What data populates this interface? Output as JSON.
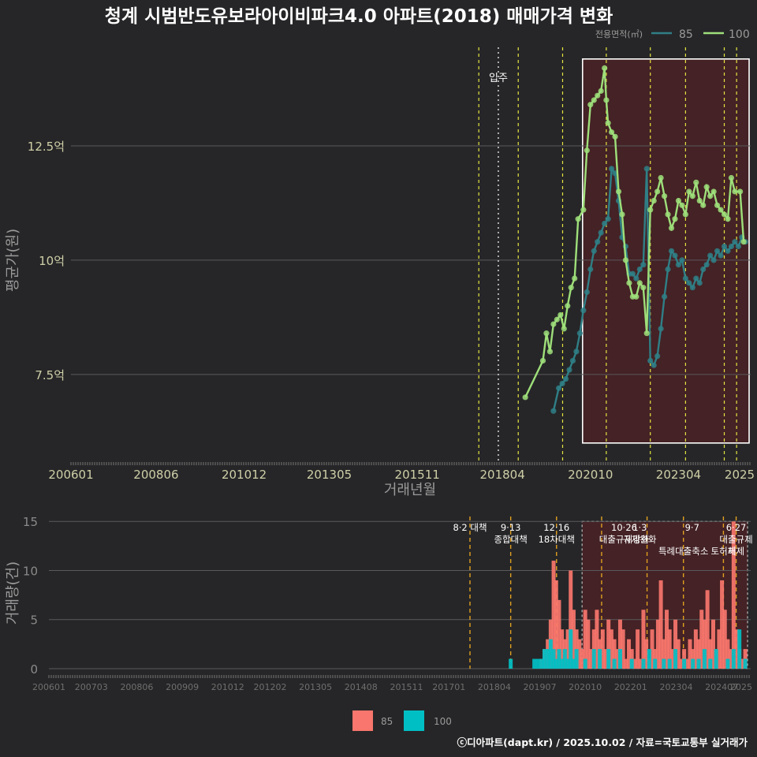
{
  "title": "청계 시범반도유보라아이비파크4.0 아파트(2018) 매매가격 변화",
  "footer": "ⓒ디아파트(dapt.kr) / 2025.10.02 / 자료=국토교통부 실거래가",
  "colors": {
    "background": "#262628",
    "line85": "#2f7f86",
    "line100": "#9edf7a",
    "bar85": "#f8766d",
    "bar100": "#00bfc4",
    "highlightFill": "#4a2224",
    "policyLine": "#e5e542",
    "policyLineBottom": "#e0a020",
    "grid": "#5a5a5c",
    "axisText": "#cfcfa8",
    "labelText": "#9a9a9a"
  },
  "chart_data": [
    {
      "type": "line",
      "title": "청계 시범반도유보라아이비파크4.0 아파트(2018) 매매가격 변화",
      "xlabel": "거래년월",
      "ylabel": "평균가(원)",
      "x_ticks": [
        "200601",
        "200806",
        "201012",
        "201305",
        "201511",
        "201804",
        "202010",
        "202304",
        "2025"
      ],
      "y_ticks": [
        {
          "value": 7.5,
          "label": "7.5억"
        },
        {
          "value": 10,
          "label": "10억"
        },
        {
          "value": 12.5,
          "label": "12.5억"
        }
      ],
      "ylim": [
        5.6,
        15.0
      ],
      "legend": {
        "title": "전용면적(㎡)",
        "entries": [
          "85",
          "100"
        ],
        "position": "top-right"
      },
      "event_label": "입주",
      "event_date": 2018.0,
      "policy_dates": [
        2017.58,
        2018.7,
        2019.96,
        2021.2,
        2022.45,
        2023.45,
        2024.55,
        2024.9
      ],
      "highlight_range": {
        "x": [
          2020.75,
          2025.9
        ],
        "y": [
          6.0,
          14.4
        ]
      },
      "series": [
        {
          "name": "85",
          "points": [
            [
              2019.7,
              6.7
            ],
            [
              2019.85,
              7.2
            ],
            [
              2019.95,
              7.3
            ],
            [
              2020.05,
              7.4
            ],
            [
              2020.15,
              7.6
            ],
            [
              2020.25,
              7.8
            ],
            [
              2020.35,
              8.0
            ],
            [
              2020.45,
              8.4
            ],
            [
              2020.55,
              8.9
            ],
            [
              2020.65,
              9.3
            ],
            [
              2020.75,
              9.8
            ],
            [
              2020.85,
              10.2
            ],
            [
              2020.95,
              10.4
            ],
            [
              2021.05,
              10.6
            ],
            [
              2021.15,
              10.8
            ],
            [
              2021.25,
              10.9
            ],
            [
              2021.35,
              12.0
            ],
            [
              2021.45,
              11.9
            ],
            [
              2021.55,
              11.3
            ],
            [
              2021.65,
              10.5
            ],
            [
              2021.75,
              10.3
            ],
            [
              2021.85,
              9.7
            ],
            [
              2021.95,
              9.7
            ],
            [
              2022.05,
              9.6
            ],
            [
              2022.15,
              9.8
            ],
            [
              2022.25,
              9.9
            ],
            [
              2022.35,
              12.0
            ],
            [
              2022.45,
              7.8
            ],
            [
              2022.55,
              7.7
            ],
            [
              2022.65,
              7.9
            ],
            [
              2022.75,
              8.5
            ],
            [
              2022.85,
              9.2
            ],
            [
              2022.95,
              9.8
            ],
            [
              2023.05,
              10.2
            ],
            [
              2023.15,
              10.1
            ],
            [
              2023.25,
              9.9
            ],
            [
              2023.35,
              10.0
            ],
            [
              2023.45,
              9.6
            ],
            [
              2023.55,
              9.5
            ],
            [
              2023.65,
              9.4
            ],
            [
              2023.75,
              9.6
            ],
            [
              2023.85,
              9.5
            ],
            [
              2023.95,
              9.8
            ],
            [
              2024.05,
              9.9
            ],
            [
              2024.15,
              10.1
            ],
            [
              2024.25,
              10.0
            ],
            [
              2024.35,
              10.2
            ],
            [
              2024.45,
              10.1
            ],
            [
              2024.55,
              10.3
            ],
            [
              2024.65,
              10.2
            ],
            [
              2024.75,
              10.3
            ],
            [
              2024.85,
              10.4
            ],
            [
              2024.95,
              10.3
            ],
            [
              2025.05,
              10.5
            ],
            [
              2025.15,
              10.4
            ]
          ]
        },
        {
          "name": "100",
          "points": [
            [
              2018.9,
              7.0
            ],
            [
              2019.4,
              7.8
            ],
            [
              2019.5,
              8.4
            ],
            [
              2019.6,
              8.0
            ],
            [
              2019.7,
              8.6
            ],
            [
              2019.8,
              8.7
            ],
            [
              2019.9,
              8.8
            ],
            [
              2020.0,
              8.5
            ],
            [
              2020.1,
              9.0
            ],
            [
              2020.2,
              9.4
            ],
            [
              2020.3,
              9.6
            ],
            [
              2020.4,
              10.9
            ],
            [
              2020.55,
              11.1
            ],
            [
              2020.65,
              12.4
            ],
            [
              2020.75,
              13.4
            ],
            [
              2020.85,
              13.5
            ],
            [
              2020.95,
              13.6
            ],
            [
              2021.05,
              13.7
            ],
            [
              2021.15,
              14.2
            ],
            [
              2021.2,
              13.5
            ],
            [
              2021.25,
              13.0
            ],
            [
              2021.35,
              12.8
            ],
            [
              2021.45,
              12.7
            ],
            [
              2021.55,
              11.5
            ],
            [
              2021.65,
              11.0
            ],
            [
              2021.75,
              10.0
            ],
            [
              2021.85,
              9.5
            ],
            [
              2021.95,
              9.2
            ],
            [
              2022.05,
              9.2
            ],
            [
              2022.15,
              9.5
            ],
            [
              2022.25,
              9.4
            ],
            [
              2022.35,
              8.4
            ],
            [
              2022.45,
              11.1
            ],
            [
              2022.55,
              11.3
            ],
            [
              2022.65,
              11.5
            ],
            [
              2022.75,
              11.8
            ],
            [
              2022.85,
              11.4
            ],
            [
              2022.95,
              11.0
            ],
            [
              2023.05,
              10.7
            ],
            [
              2023.15,
              10.9
            ],
            [
              2023.25,
              11.3
            ],
            [
              2023.35,
              11.2
            ],
            [
              2023.45,
              11.0
            ],
            [
              2023.55,
              11.5
            ],
            [
              2023.65,
              11.4
            ],
            [
              2023.75,
              11.7
            ],
            [
              2023.85,
              11.3
            ],
            [
              2023.95,
              11.2
            ],
            [
              2024.05,
              11.6
            ],
            [
              2024.15,
              11.4
            ],
            [
              2024.25,
              11.5
            ],
            [
              2024.35,
              11.2
            ],
            [
              2024.45,
              11.1
            ],
            [
              2024.55,
              11.0
            ],
            [
              2024.65,
              10.9
            ],
            [
              2024.75,
              11.8
            ],
            [
              2024.85,
              11.5
            ],
            [
              2025.0,
              11.5
            ],
            [
              2025.1,
              10.4
            ]
          ]
        }
      ]
    },
    {
      "type": "bar",
      "ylabel": "거래량(건)",
      "x_ticks": [
        "200601",
        "200703",
        "200806",
        "200909",
        "201012",
        "201202",
        "201305",
        "201408",
        "201511",
        "201701",
        "201804",
        "201907",
        "202010",
        "202201",
        "202304",
        "202407",
        "2025"
      ],
      "y_ticks": [
        0,
        5,
        10,
        15
      ],
      "ylim": [
        0,
        15.5
      ],
      "legend": {
        "entries": [
          "85",
          "100"
        ],
        "position": "bottom"
      },
      "highlight_range": {
        "x": [
          2020.75,
          2025.9
        ]
      },
      "annotations": [
        {
          "date": 2017.58,
          "lines": [
            "8·2 대책"
          ]
        },
        {
          "date": 2018.7,
          "lines": [
            "9·13",
            "종합대책"
          ]
        },
        {
          "date": 2019.96,
          "lines": [
            "12·16",
            "18차대책"
          ]
        },
        {
          "date": 2021.82,
          "lines": [
            "10·26",
            "대출규제강화"
          ]
        },
        {
          "date": 2022.25,
          "lines": [
            "1·3",
            "규제완화"
          ]
        },
        {
          "date": 2023.69,
          "lines": [
            "9·7"
          ]
        },
        {
          "date": 2023.45,
          "lines": [
            "",
            "",
            "특례대출축소"
          ]
        },
        {
          "date": 2024.55,
          "lines": [
            "",
            "",
            "토허제"
          ]
        },
        {
          "date": 2024.9,
          "lines": [
            "6·27",
            "대출규제",
            "해제"
          ]
        }
      ],
      "series": [
        {
          "name": "85",
          "points": [
            [
              2019.55,
              1
            ],
            [
              2019.63,
              2
            ],
            [
              2019.72,
              3
            ],
            [
              2019.8,
              5
            ],
            [
              2019.88,
              11
            ],
            [
              2019.95,
              9
            ],
            [
              2020.03,
              7
            ],
            [
              2020.11,
              4
            ],
            [
              2020.19,
              3
            ],
            [
              2020.27,
              4
            ],
            [
              2020.35,
              10
            ],
            [
              2020.43,
              6
            ],
            [
              2020.51,
              4
            ],
            [
              2020.59,
              3
            ],
            [
              2020.67,
              2
            ],
            [
              2020.75,
              6
            ],
            [
              2020.83,
              5
            ],
            [
              2020.91,
              2
            ],
            [
              2020.99,
              4
            ],
            [
              2021.07,
              6
            ],
            [
              2021.15,
              3
            ],
            [
              2021.23,
              4
            ],
            [
              2021.31,
              2
            ],
            [
              2021.39,
              5
            ],
            [
              2021.47,
              4
            ],
            [
              2021.55,
              3
            ],
            [
              2021.63,
              2
            ],
            [
              2021.71,
              5
            ],
            [
              2021.79,
              4
            ],
            [
              2021.87,
              1
            ],
            [
              2021.95,
              3
            ],
            [
              2022.03,
              2
            ],
            [
              2022.11,
              1
            ],
            [
              2022.19,
              4
            ],
            [
              2022.27,
              1
            ],
            [
              2022.35,
              6
            ],
            [
              2022.43,
              3
            ],
            [
              2022.51,
              1
            ],
            [
              2022.59,
              4
            ],
            [
              2022.67,
              2
            ],
            [
              2022.75,
              5
            ],
            [
              2022.83,
              9
            ],
            [
              2022.91,
              3
            ],
            [
              2022.99,
              6
            ],
            [
              2023.07,
              4
            ],
            [
              2023.15,
              2
            ],
            [
              2023.23,
              5
            ],
            [
              2023.31,
              3
            ],
            [
              2023.39,
              1
            ],
            [
              2023.47,
              2
            ],
            [
              2023.55,
              1
            ],
            [
              2023.63,
              3
            ],
            [
              2023.71,
              2
            ],
            [
              2023.79,
              4
            ],
            [
              2023.87,
              3
            ],
            [
              2023.95,
              6
            ],
            [
              2024.03,
              5
            ],
            [
              2024.11,
              8
            ],
            [
              2024.19,
              3
            ],
            [
              2024.27,
              5
            ],
            [
              2024.35,
              2
            ],
            [
              2024.43,
              4
            ],
            [
              2024.51,
              9
            ],
            [
              2024.59,
              6
            ],
            [
              2024.67,
              3
            ],
            [
              2024.75,
              2
            ],
            [
              2024.83,
              15
            ],
            [
              2024.91,
              4
            ],
            [
              2024.99,
              2
            ],
            [
              2025.07,
              1
            ],
            [
              2025.15,
              2
            ]
          ]
        },
        {
          "name": "100",
          "points": [
            [
              2018.7,
              1
            ],
            [
              2019.35,
              1
            ],
            [
              2019.45,
              1
            ],
            [
              2019.55,
              1
            ],
            [
              2019.63,
              2
            ],
            [
              2019.72,
              2
            ],
            [
              2019.8,
              3
            ],
            [
              2019.88,
              2
            ],
            [
              2019.95,
              1
            ],
            [
              2020.03,
              2
            ],
            [
              2020.11,
              1
            ],
            [
              2020.19,
              2
            ],
            [
              2020.27,
              1
            ],
            [
              2020.35,
              4
            ],
            [
              2020.43,
              1
            ],
            [
              2020.51,
              2
            ],
            [
              2020.75,
              1
            ],
            [
              2020.99,
              2
            ],
            [
              2021.15,
              2
            ],
            [
              2021.39,
              2
            ],
            [
              2021.55,
              1
            ],
            [
              2021.71,
              2
            ],
            [
              2022.03,
              1
            ],
            [
              2022.35,
              1
            ],
            [
              2022.51,
              2
            ],
            [
              2022.67,
              1
            ],
            [
              2022.91,
              1
            ],
            [
              2023.07,
              1
            ],
            [
              2023.23,
              2
            ],
            [
              2023.47,
              1
            ],
            [
              2023.71,
              1
            ],
            [
              2023.87,
              1
            ],
            [
              2024.03,
              2
            ],
            [
              2024.19,
              1
            ],
            [
              2024.35,
              2
            ],
            [
              2024.67,
              1
            ],
            [
              2024.83,
              2
            ],
            [
              2024.99,
              4
            ],
            [
              2025.15,
              1
            ]
          ]
        }
      ]
    }
  ]
}
